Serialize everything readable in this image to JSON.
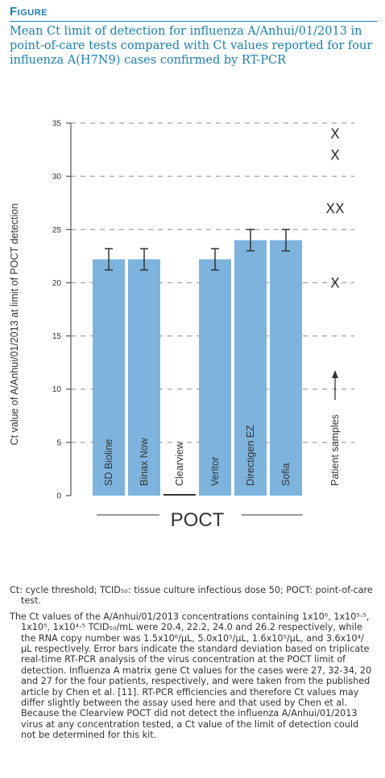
{
  "figure": {
    "label": "Figure",
    "title": "Mean Ct limit of detection for influenza A/Anhui/01/2013 in point-of-care tests compared with Ct values reported for four influenza A(H7N9) cases confirmed by RT-PCR"
  },
  "chart_data": {
    "type": "bar",
    "ylabel": "Ct value of A/Anhui/01/2013 at limit of POCT detection",
    "xlabel": "POCT",
    "ylim": [
      0,
      35
    ],
    "yticks": [
      "0",
      "5",
      "10",
      "15",
      "20",
      "25",
      "30",
      "35"
    ],
    "grid": "dashed horizontal",
    "bar_color": "#7db3dc",
    "categories": [
      "SD Bioline",
      "Binax Now",
      "Clearview",
      "Veritor",
      "Directigen EZ",
      "Sofia"
    ],
    "values": [
      22.2,
      22.2,
      0,
      22.2,
      24.0,
      24.0
    ],
    "errors": [
      1.0,
      1.0,
      0,
      1.0,
      1.0,
      1.0
    ],
    "patient_samples": {
      "label": "Patient samples",
      "values": [
        27,
        32,
        34,
        20
      ],
      "markers": [
        {
          "y": 34,
          "text": "X"
        },
        {
          "y": 32,
          "text": "X"
        },
        {
          "y": 27,
          "text": "XX"
        },
        {
          "y": 20,
          "text": "X"
        }
      ]
    }
  },
  "caption": {
    "p1": "Ct: cycle threshold; TCID₅₀: tissue culture infectious dose 50; POCT: point-of-care test.",
    "p2": "The Ct values of the A/Anhui/01/2013 concentrations containing 1x10⁶, 1x10⁵·⁵, 1x10⁵, 1x10⁴·⁵ TCID₅₀/mL were 20.4, 22.2, 24.0 and 26.2 respectively, while the RNA copy number was 1.5x10⁶/µL, 5.0x10⁵/µL, 1.6x10⁵/µL, and 3.6x10⁴/µL respectively. Error bars indicate the standard deviation based on triplicate real-time RT-PCR analysis of the virus concentration at the POCT limit of detection. Influenza A matrix gene Ct values for the cases were 27, 32-34, 20 and 27 for the four patients, respectively, and were taken from the published article by Chen et al. [11]. RT-PCR efficiencies and therefore Ct values may differ slightly between the assay used here and that used by Chen et al. Because the Clearview POCT did not detect the influenza A/Anhui/01/2013 virus at any concentration tested, a Ct value of the limit of detection could not be determined for this kit."
  }
}
